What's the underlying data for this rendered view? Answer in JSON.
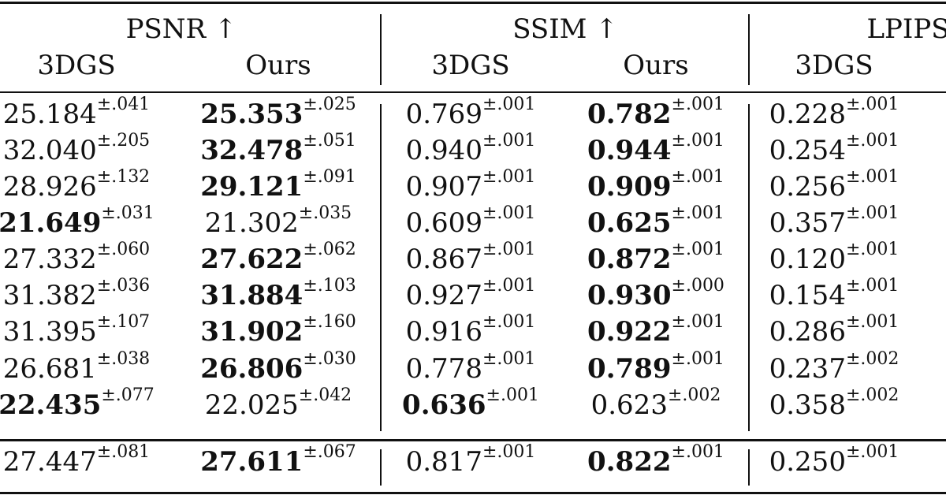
{
  "header": {
    "groups": [
      {
        "label": "PSNR ↑"
      },
      {
        "label": "SSIM ↑"
      },
      {
        "label": "LPIPS"
      }
    ],
    "subheaders": [
      "3DGS",
      "Ours",
      "3DGS",
      "Ours",
      "3DGS"
    ]
  },
  "rows": [
    {
      "cells": [
        {
          "value": "25.184",
          "std": "±.041",
          "best": false
        },
        {
          "value": "25.353",
          "std": "±.025",
          "best": true
        },
        {
          "value": "0.769",
          "std": "±.001",
          "best": false
        },
        {
          "value": "0.782",
          "std": "±.001",
          "best": true
        },
        {
          "value": "0.228",
          "std": "±.001",
          "best": false
        }
      ]
    },
    {
      "cells": [
        {
          "value": "32.040",
          "std": "±.205",
          "best": false
        },
        {
          "value": "32.478",
          "std": "±.051",
          "best": true
        },
        {
          "value": "0.940",
          "std": "±.001",
          "best": false
        },
        {
          "value": "0.944",
          "std": "±.001",
          "best": true
        },
        {
          "value": "0.254",
          "std": "±.001",
          "best": false
        }
      ]
    },
    {
      "cells": [
        {
          "value": "28.926",
          "std": "±.132",
          "best": false
        },
        {
          "value": "29.121",
          "std": "±.091",
          "best": true
        },
        {
          "value": "0.907",
          "std": "±.001",
          "best": false
        },
        {
          "value": "0.909",
          "std": "±.001",
          "best": true
        },
        {
          "value": "0.256",
          "std": "±.001",
          "best": false
        }
      ]
    },
    {
      "cells": [
        {
          "value": "21.649",
          "std": "±.031",
          "best": true
        },
        {
          "value": "21.302",
          "std": "±.035",
          "best": false
        },
        {
          "value": "0.609",
          "std": "±.001",
          "best": false
        },
        {
          "value": "0.625",
          "std": "±.001",
          "best": true
        },
        {
          "value": "0.357",
          "std": "±.001",
          "best": false
        }
      ]
    },
    {
      "cells": [
        {
          "value": "27.332",
          "std": "±.060",
          "best": false
        },
        {
          "value": "27.622",
          "std": "±.062",
          "best": true
        },
        {
          "value": "0.867",
          "std": "±.001",
          "best": false
        },
        {
          "value": "0.872",
          "std": "±.001",
          "best": true
        },
        {
          "value": "0.120",
          "std": "±.001",
          "best": false
        }
      ]
    },
    {
      "cells": [
        {
          "value": "31.382",
          "std": "±.036",
          "best": false
        },
        {
          "value": "31.884",
          "std": "±.103",
          "best": true
        },
        {
          "value": "0.927",
          "std": "±.001",
          "best": false
        },
        {
          "value": "0.930",
          "std": "±.000",
          "best": true
        },
        {
          "value": "0.154",
          "std": "±.001",
          "best": false
        }
      ]
    },
    {
      "cells": [
        {
          "value": "31.395",
          "std": "±.107",
          "best": false
        },
        {
          "value": "31.902",
          "std": "±.160",
          "best": true
        },
        {
          "value": "0.916",
          "std": "±.001",
          "best": false
        },
        {
          "value": "0.922",
          "std": "±.001",
          "best": true
        },
        {
          "value": "0.286",
          "std": "±.001",
          "best": false
        }
      ]
    },
    {
      "cells": [
        {
          "value": "26.681",
          "std": "±.038",
          "best": false
        },
        {
          "value": "26.806",
          "std": "±.030",
          "best": true
        },
        {
          "value": "0.778",
          "std": "±.001",
          "best": false
        },
        {
          "value": "0.789",
          "std": "±.001",
          "best": true
        },
        {
          "value": "0.237",
          "std": "±.002",
          "best": false
        }
      ]
    },
    {
      "cells": [
        {
          "value": "22.435",
          "std": "±.077",
          "best": true
        },
        {
          "value": "22.025",
          "std": "±.042",
          "best": false
        },
        {
          "value": "0.636",
          "std": "±.001",
          "best": true
        },
        {
          "value": "0.623",
          "std": "±.002",
          "best": false
        },
        {
          "value": "0.358",
          "std": "±.002",
          "best": false
        }
      ]
    }
  ],
  "summary_row": {
    "cells": [
      {
        "value": "27.447",
        "std": "±.081",
        "best": false
      },
      {
        "value": "27.611",
        "std": "±.067",
        "best": true
      },
      {
        "value": "0.817",
        "std": "±.001",
        "best": false
      },
      {
        "value": "0.822",
        "std": "±.001",
        "best": true
      },
      {
        "value": "0.250",
        "std": "±.001",
        "best": false
      }
    ]
  }
}
